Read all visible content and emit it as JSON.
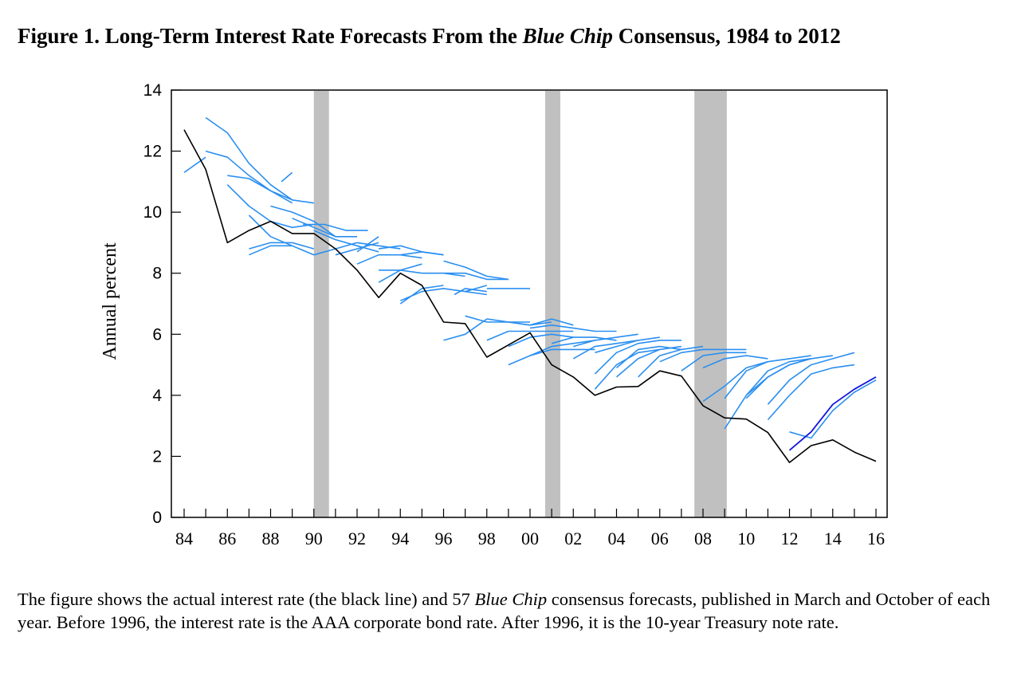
{
  "title": {
    "prefix": "Figure 1. Long-Term Interest Rate Forecasts From the ",
    "italic": "Blue Chip",
    "suffix": " Consensus, 1984 to 2012"
  },
  "caption": {
    "part1": "The figure shows the actual interest rate (the black line) and 57 ",
    "italic": "Blue Chip",
    "part2": " consensus forecasts, published in March and October of each year. Before 1996, the interest rate is the AAA corporate bond rate. After 1996, it is the 10-year Treasury note rate."
  },
  "colors": {
    "actual": "#000000",
    "forecast": "#2a8ff0",
    "forecast_last": "#1414dc",
    "recession": "#c0c0c0"
  },
  "chart_data": {
    "type": "line",
    "title": "Figure 1. Long-Term Interest Rate Forecasts From the Blue Chip Consensus, 1984 to 2012",
    "ylabel": "Annual percent",
    "xlabel": "",
    "xlim": [
      1984,
      2016
    ],
    "ylim": [
      0,
      14
    ],
    "yticks": [
      0,
      2,
      4,
      6,
      8,
      10,
      12,
      14
    ],
    "xticks": [
      {
        "year": 1984,
        "label": "84"
      },
      {
        "year": 1986,
        "label": "86"
      },
      {
        "year": 1988,
        "label": "88"
      },
      {
        "year": 1990,
        "label": "90"
      },
      {
        "year": 1992,
        "label": "92"
      },
      {
        "year": 1994,
        "label": "94"
      },
      {
        "year": 1996,
        "label": "96"
      },
      {
        "year": 1998,
        "label": "98"
      },
      {
        "year": 2000,
        "label": "00"
      },
      {
        "year": 2002,
        "label": "02"
      },
      {
        "year": 2004,
        "label": "04"
      },
      {
        "year": 2006,
        "label": "06"
      },
      {
        "year": 2008,
        "label": "08"
      },
      {
        "year": 2010,
        "label": "10"
      },
      {
        "year": 2012,
        "label": "12"
      },
      {
        "year": 2014,
        "label": "14"
      },
      {
        "year": 2016,
        "label": "16"
      }
    ],
    "recessions": [
      [
        1990.0,
        1990.7
      ],
      [
        2000.7,
        2001.4
      ],
      [
        2007.6,
        2009.1
      ]
    ],
    "actual": {
      "name": "Actual interest rate",
      "x": [
        1984,
        1985,
        1986,
        1987,
        1988,
        1989,
        1990,
        1991,
        1992,
        1993,
        1994,
        1995,
        1996,
        1997,
        1998,
        1999,
        2000,
        2001,
        2002,
        2003,
        2004,
        2005,
        2006,
        2007,
        2008,
        2009,
        2010,
        2011,
        2012,
        2013,
        2014,
        2015,
        2016
      ],
      "y": [
        12.7,
        11.4,
        9.0,
        9.4,
        9.7,
        9.3,
        9.3,
        8.8,
        8.1,
        7.2,
        8.0,
        7.6,
        6.4,
        6.35,
        5.25,
        5.65,
        6.05,
        5.0,
        4.6,
        4.0,
        4.27,
        4.29,
        4.8,
        4.63,
        3.66,
        3.26,
        3.22,
        2.78,
        1.8,
        2.35,
        2.54,
        2.14,
        1.84
      ]
    },
    "forecasts": [
      {
        "x": [
          1984,
          1985
        ],
        "y": [
          11.3,
          11.8
        ]
      },
      {
        "x": [
          1985,
          1986,
          1987,
          1988,
          1989,
          1990
        ],
        "y": [
          13.1,
          12.6,
          11.6,
          10.9,
          10.4,
          10.3
        ]
      },
      {
        "x": [
          1985,
          1986,
          1987,
          1988,
          1989
        ],
        "y": [
          12.0,
          11.8,
          11.2,
          10.7,
          10.4
        ]
      },
      {
        "x": [
          1986,
          1987,
          1988,
          1989
        ],
        "y": [
          11.2,
          11.1,
          10.7,
          10.3
        ]
      },
      {
        "x": [
          1988.5,
          1989
        ],
        "y": [
          11.0,
          11.3
        ]
      },
      {
        "x": [
          1986,
          1987,
          1988,
          1989,
          1990
        ],
        "y": [
          10.9,
          10.2,
          9.7,
          9.5,
          9.6
        ]
      },
      {
        "x": [
          1987,
          1988,
          1989,
          1990
        ],
        "y": [
          9.9,
          9.2,
          8.9,
          8.6
        ]
      },
      {
        "x": [
          1987,
          1988,
          1989
        ],
        "y": [
          8.6,
          8.9,
          8.9
        ]
      },
      {
        "x": [
          1987,
          1988,
          1989,
          1990
        ],
        "y": [
          8.8,
          9.0,
          9.0,
          8.8
        ]
      },
      {
        "x": [
          1988,
          1989,
          1990,
          1991
        ],
        "y": [
          10.2,
          10.0,
          9.7,
          9.2
        ]
      },
      {
        "x": [
          1989,
          1990,
          1991,
          1992
        ],
        "y": [
          9.8,
          9.5,
          9.2,
          9.2
        ]
      },
      {
        "x": [
          1989.5,
          1990.5,
          1991.5,
          1992.5
        ],
        "y": [
          9.6,
          9.6,
          9.4,
          9.4
        ]
      },
      {
        "x": [
          1990,
          1991,
          1992,
          1993
        ],
        "y": [
          9.4,
          9.1,
          8.9,
          8.7
        ]
      },
      {
        "x": [
          1990,
          1991,
          1992,
          1993,
          1994
        ],
        "y": [
          8.6,
          8.8,
          9.0,
          8.9,
          8.8
        ]
      },
      {
        "x": [
          1991,
          1992,
          1993
        ],
        "y": [
          8.6,
          8.8,
          9.0
        ]
      },
      {
        "x": [
          1992,
          1993
        ],
        "y": [
          8.7,
          9.2
        ]
      },
      {
        "x": [
          1992,
          1993,
          1994,
          1995
        ],
        "y": [
          8.3,
          8.6,
          8.6,
          8.5
        ]
      },
      {
        "x": [
          1993,
          1994,
          1995,
          1996
        ],
        "y": [
          8.8,
          8.9,
          8.7,
          8.6
        ]
      },
      {
        "x": [
          1993,
          1994,
          1995
        ],
        "y": [
          7.7,
          8.1,
          8.3
        ]
      },
      {
        "x": [
          1994,
          1995,
          1996
        ],
        "y": [
          8.6,
          8.7,
          8.6
        ]
      },
      {
        "x": [
          1993,
          1994,
          1995,
          1996,
          1997
        ],
        "y": [
          8.1,
          8.1,
          8.0,
          8.0,
          7.9
        ]
      },
      {
        "x": [
          1996,
          1997,
          1998,
          1999
        ],
        "y": [
          8.4,
          8.2,
          7.9,
          7.8
        ]
      },
      {
        "x": [
          1996,
          1997,
          1998,
          1999
        ],
        "y": [
          8.0,
          8.0,
          7.8,
          7.8
        ]
      },
      {
        "x": [
          1998,
          1999,
          2000
        ],
        "y": [
          7.5,
          7.5,
          7.5
        ]
      },
      {
        "x": [
          1994,
          1995,
          1996
        ],
        "y": [
          7.0,
          7.5,
          7.6
        ]
      },
      {
        "x": [
          1994,
          1995,
          1996,
          1997,
          1998
        ],
        "y": [
          7.1,
          7.4,
          7.5,
          7.4,
          7.3
        ]
      },
      {
        "x": [
          1996.5,
          1997,
          1998
        ],
        "y": [
          7.3,
          7.5,
          7.4
        ]
      },
      {
        "x": [
          1997,
          1998
        ],
        "y": [
          7.4,
          7.6
        ]
      },
      {
        "x": [
          1996,
          1997,
          1998
        ],
        "y": [
          5.8,
          6.0,
          6.5
        ]
      },
      {
        "x": [
          1997,
          1998,
          1999,
          2000
        ],
        "y": [
          6.6,
          6.4,
          6.4,
          6.4
        ]
      },
      {
        "x": [
          1998,
          1999,
          2000,
          2001
        ],
        "y": [
          6.5,
          6.4,
          6.3,
          6.4
        ]
      },
      {
        "x": [
          1999,
          2000,
          2001,
          2002
        ],
        "y": [
          6.4,
          6.3,
          6.5,
          6.3
        ]
      },
      {
        "x": [
          1998,
          1999,
          2000,
          2001,
          2002
        ],
        "y": [
          5.8,
          6.1,
          6.1,
          6.1,
          6.1
        ]
      },
      {
        "x": [
          1999,
          2000,
          2001,
          2002
        ],
        "y": [
          5.6,
          5.9,
          6.0,
          5.9
        ]
      },
      {
        "x": [
          2000,
          2001,
          2002,
          2003,
          2004
        ],
        "y": [
          6.2,
          6.3,
          6.2,
          6.1,
          6.1
        ]
      },
      {
        "x": [
          2001,
          2002,
          2003,
          2004
        ],
        "y": [
          5.7,
          5.9,
          5.9,
          5.8
        ]
      },
      {
        "x": [
          1999,
          2000,
          2001,
          2002,
          2003
        ],
        "y": [
          5.0,
          5.3,
          5.5,
          5.5,
          5.5
        ]
      },
      {
        "x": [
          2000,
          2001,
          2002,
          2003
        ],
        "y": [
          5.3,
          5.6,
          5.7,
          5.8
        ]
      },
      {
        "x": [
          2002,
          2003,
          2004,
          2005
        ],
        "y": [
          5.6,
          5.8,
          5.9,
          6.0
        ]
      },
      {
        "x": [
          2002,
          2003,
          2004,
          2005
        ],
        "y": [
          5.2,
          5.6,
          5.7,
          5.8
        ]
      },
      {
        "x": [
          2003,
          2004,
          2005,
          2006
        ],
        "y": [
          5.4,
          5.6,
          5.8,
          5.9
        ]
      },
      {
        "x": [
          2003,
          2004,
          2005,
          2006,
          2007
        ],
        "y": [
          4.7,
          5.4,
          5.7,
          5.8,
          5.8
        ]
      },
      {
        "x": [
          2003,
          2004,
          2005,
          2006
        ],
        "y": [
          4.2,
          5.0,
          5.4,
          5.5
        ]
      },
      {
        "x": [
          2004,
          2005,
          2006,
          2007
        ],
        "y": [
          4.6,
          5.2,
          5.5,
          5.6
        ]
      },
      {
        "x": [
          2004,
          2005,
          2006,
          2007
        ],
        "y": [
          4.9,
          5.5,
          5.6,
          5.5
        ]
      },
      {
        "x": [
          2005,
          2006,
          2007,
          2008
        ],
        "y": [
          4.6,
          5.3,
          5.5,
          5.6
        ]
      },
      {
        "x": [
          2006,
          2007,
          2008,
          2009,
          2010
        ],
        "y": [
          5.1,
          5.4,
          5.5,
          5.5,
          5.5
        ]
      },
      {
        "x": [
          2007,
          2008,
          2009,
          2010
        ],
        "y": [
          4.8,
          5.3,
          5.4,
          5.4
        ]
      },
      {
        "x": [
          2008,
          2009,
          2010,
          2011
        ],
        "y": [
          4.9,
          5.2,
          5.3,
          5.2
        ]
      },
      {
        "x": [
          2008,
          2009,
          2010,
          2011
        ],
        "y": [
          3.8,
          4.3,
          4.9,
          5.1
        ]
      },
      {
        "x": [
          2009,
          2010,
          2011,
          2012,
          2013
        ],
        "y": [
          2.9,
          4.0,
          4.8,
          5.1,
          5.2
        ]
      },
      {
        "x": [
          2009,
          2010,
          2011,
          2012,
          2013
        ],
        "y": [
          3.9,
          4.8,
          5.1,
          5.2,
          5.3
        ]
      },
      {
        "x": [
          2010,
          2011,
          2012,
          2013,
          2014
        ],
        "y": [
          3.9,
          4.6,
          5.0,
          5.2,
          5.3
        ]
      },
      {
        "x": [
          2010,
          2011,
          2012,
          2013
        ],
        "y": [
          4.0,
          4.6,
          5.0,
          5.2
        ]
      },
      {
        "x": [
          2011,
          2012,
          2013,
          2014,
          2015
        ],
        "y": [
          3.2,
          4.0,
          4.7,
          4.9,
          5.0
        ]
      },
      {
        "x": [
          2011,
          2012,
          2013,
          2014,
          2015
        ],
        "y": [
          3.7,
          4.5,
          5.0,
          5.2,
          5.4
        ]
      },
      {
        "x": [
          2012,
          2013,
          2014,
          2015,
          2016
        ],
        "y": [
          2.8,
          2.6,
          3.5,
          4.1,
          4.5
        ]
      }
    ],
    "last_forecast": {
      "x": [
        2012,
        2013,
        2014,
        2015,
        2016
      ],
      "y": [
        2.2,
        2.8,
        3.7,
        4.2,
        4.6
      ]
    }
  }
}
